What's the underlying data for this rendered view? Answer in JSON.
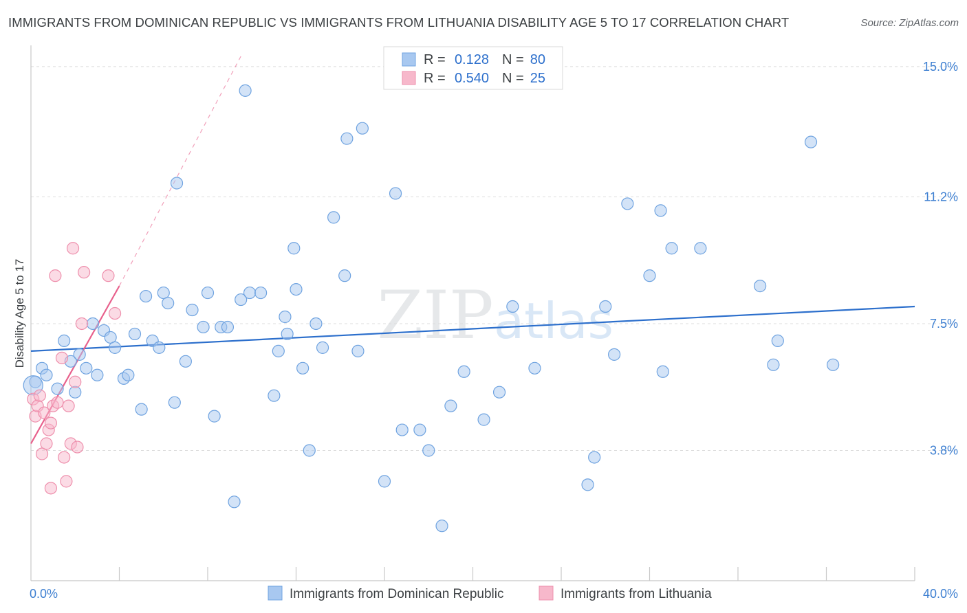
{
  "title": "IMMIGRANTS FROM DOMINICAN REPUBLIC VS IMMIGRANTS FROM LITHUANIA DISABILITY AGE 5 TO 17 CORRELATION CHART",
  "source": "Source: ZipAtlas.com",
  "watermark": {
    "zip": "ZIP",
    "atlas": "atlas"
  },
  "chart_data": {
    "type": "scatter",
    "ylabel": "Disability Age 5 to 17",
    "xlim": [
      0,
      40
    ],
    "ylim": [
      0,
      15.5
    ],
    "x_tick_labels": [
      {
        "value": 0,
        "label": "0.0%"
      },
      {
        "value": 40,
        "label": "40.0%"
      }
    ],
    "y_tick_labels": [
      {
        "value": 3.8,
        "label": "3.8%"
      },
      {
        "value": 7.5,
        "label": "7.5%"
      },
      {
        "value": 11.2,
        "label": "11.2%"
      },
      {
        "value": 15.0,
        "label": "15.0%"
      }
    ],
    "grid": "horizontal dashed",
    "legend_placement": "bottom-center",
    "stats_box": [
      {
        "r_label": "R =",
        "r": "0.128",
        "n_label": "N =",
        "n": "80",
        "color": "#a8c8f0"
      },
      {
        "r_label": "R =",
        "r": "0.540",
        "n_label": "N =",
        "n": "25",
        "color": "#f7b8cb"
      }
    ],
    "series": [
      {
        "name": "Immigrants from Dominican Republic",
        "color": "#a8c8f0",
        "stroke": "#6fa3e0",
        "trend": {
          "x": [
            0,
            40
          ],
          "y": [
            6.7,
            8.0
          ],
          "color": "#2c6fcc"
        },
        "points": [
          [
            0.2,
            5.8
          ],
          [
            0.5,
            6.2
          ],
          [
            0.7,
            6.0
          ],
          [
            1.2,
            5.6
          ],
          [
            1.5,
            7.0
          ],
          [
            1.8,
            6.4
          ],
          [
            2.0,
            5.5
          ],
          [
            2.2,
            6.6
          ],
          [
            2.5,
            6.2
          ],
          [
            2.8,
            7.5
          ],
          [
            3.0,
            6.0
          ],
          [
            3.3,
            7.3
          ],
          [
            3.6,
            7.1
          ],
          [
            3.8,
            6.8
          ],
          [
            4.2,
            5.9
          ],
          [
            4.4,
            6.0
          ],
          [
            4.7,
            7.2
          ],
          [
            5.0,
            5.0
          ],
          [
            5.2,
            8.3
          ],
          [
            5.5,
            7.0
          ],
          [
            5.8,
            6.8
          ],
          [
            6.0,
            8.4
          ],
          [
            6.2,
            8.1
          ],
          [
            6.5,
            5.2
          ],
          [
            6.6,
            11.6
          ],
          [
            7.0,
            6.4
          ],
          [
            7.3,
            7.9
          ],
          [
            7.8,
            7.4
          ],
          [
            8.0,
            8.4
          ],
          [
            8.3,
            4.8
          ],
          [
            8.6,
            7.4
          ],
          [
            8.9,
            7.4
          ],
          [
            9.2,
            2.3
          ],
          [
            9.5,
            8.2
          ],
          [
            9.7,
            14.3
          ],
          [
            9.9,
            8.4
          ],
          [
            10.4,
            8.4
          ],
          [
            11.0,
            5.4
          ],
          [
            11.2,
            6.7
          ],
          [
            11.5,
            7.7
          ],
          [
            11.6,
            7.2
          ],
          [
            11.9,
            9.7
          ],
          [
            12.0,
            8.5
          ],
          [
            12.3,
            6.2
          ],
          [
            12.6,
            3.8
          ],
          [
            12.9,
            7.5
          ],
          [
            13.2,
            6.8
          ],
          [
            13.7,
            10.6
          ],
          [
            14.2,
            8.9
          ],
          [
            14.3,
            12.9
          ],
          [
            14.8,
            6.7
          ],
          [
            15.0,
            13.2
          ],
          [
            16.0,
            2.9
          ],
          [
            16.5,
            11.3
          ],
          [
            16.8,
            4.4
          ],
          [
            17.6,
            4.4
          ],
          [
            18.0,
            3.8
          ],
          [
            18.6,
            1.6
          ],
          [
            19.0,
            5.1
          ],
          [
            19.6,
            6.1
          ],
          [
            20.5,
            4.7
          ],
          [
            21.2,
            5.5
          ],
          [
            21.8,
            8.0
          ],
          [
            22.8,
            6.2
          ],
          [
            25.2,
            2.8
          ],
          [
            25.5,
            3.6
          ],
          [
            26.0,
            8.0
          ],
          [
            26.4,
            6.6
          ],
          [
            27.0,
            11.0
          ],
          [
            28.0,
            8.9
          ],
          [
            28.5,
            10.8
          ],
          [
            28.6,
            6.1
          ],
          [
            29.0,
            9.7
          ],
          [
            30.3,
            9.7
          ],
          [
            33.0,
            8.6
          ],
          [
            33.6,
            6.3
          ],
          [
            33.8,
            7.0
          ],
          [
            35.3,
            12.8
          ],
          [
            36.3,
            6.3
          ],
          [
            0.1,
            5.7
          ]
        ]
      },
      {
        "name": "Immigrants from Lithuania",
        "color": "#f7b8cb",
        "stroke": "#ee8fac",
        "trend": {
          "x": [
            0,
            4
          ],
          "y": [
            4.0,
            8.6
          ],
          "color": "#e8608c",
          "dashed_extension_x": 9.5,
          "dashed_extension_y": 15.3
        },
        "points": [
          [
            0.1,
            5.3
          ],
          [
            0.2,
            4.8
          ],
          [
            0.3,
            5.1
          ],
          [
            0.4,
            5.4
          ],
          [
            0.5,
            3.7
          ],
          [
            0.6,
            4.9
          ],
          [
            0.7,
            4.0
          ],
          [
            0.8,
            4.4
          ],
          [
            0.9,
            2.7
          ],
          [
            0.9,
            4.6
          ],
          [
            1.0,
            5.1
          ],
          [
            1.1,
            8.9
          ],
          [
            1.2,
            5.2
          ],
          [
            1.4,
            6.5
          ],
          [
            1.5,
            3.6
          ],
          [
            1.6,
            2.9
          ],
          [
            1.7,
            5.1
          ],
          [
            1.8,
            4.0
          ],
          [
            1.9,
            9.7
          ],
          [
            2.0,
            5.8
          ],
          [
            2.1,
            3.9
          ],
          [
            2.3,
            7.5
          ],
          [
            2.4,
            9.0
          ],
          [
            3.5,
            8.9
          ],
          [
            3.8,
            7.8
          ]
        ]
      }
    ]
  }
}
